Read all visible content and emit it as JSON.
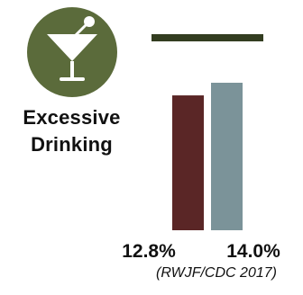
{
  "title": {
    "line1": "Excessive",
    "line2": "Drinking"
  },
  "icon": {
    "name": "martini-glass-icon",
    "background_color": "#5b6b3b",
    "glyph_color": "#ffffff"
  },
  "divider_color": "#333d20",
  "source": "(RWJF/CDC 2017)",
  "chart_data": {
    "type": "bar",
    "title": "Excessive Drinking",
    "unit": "%",
    "categories": [
      "",
      ""
    ],
    "values": [
      12.8,
      14.0
    ],
    "labels": [
      "12.8%",
      "14.0%"
    ],
    "colors": [
      "#5a2626",
      "#7b9399"
    ],
    "ylim": [
      0,
      14.0
    ],
    "grid": false,
    "legend": "none",
    "source": "(RWJF/CDC 2017)"
  }
}
